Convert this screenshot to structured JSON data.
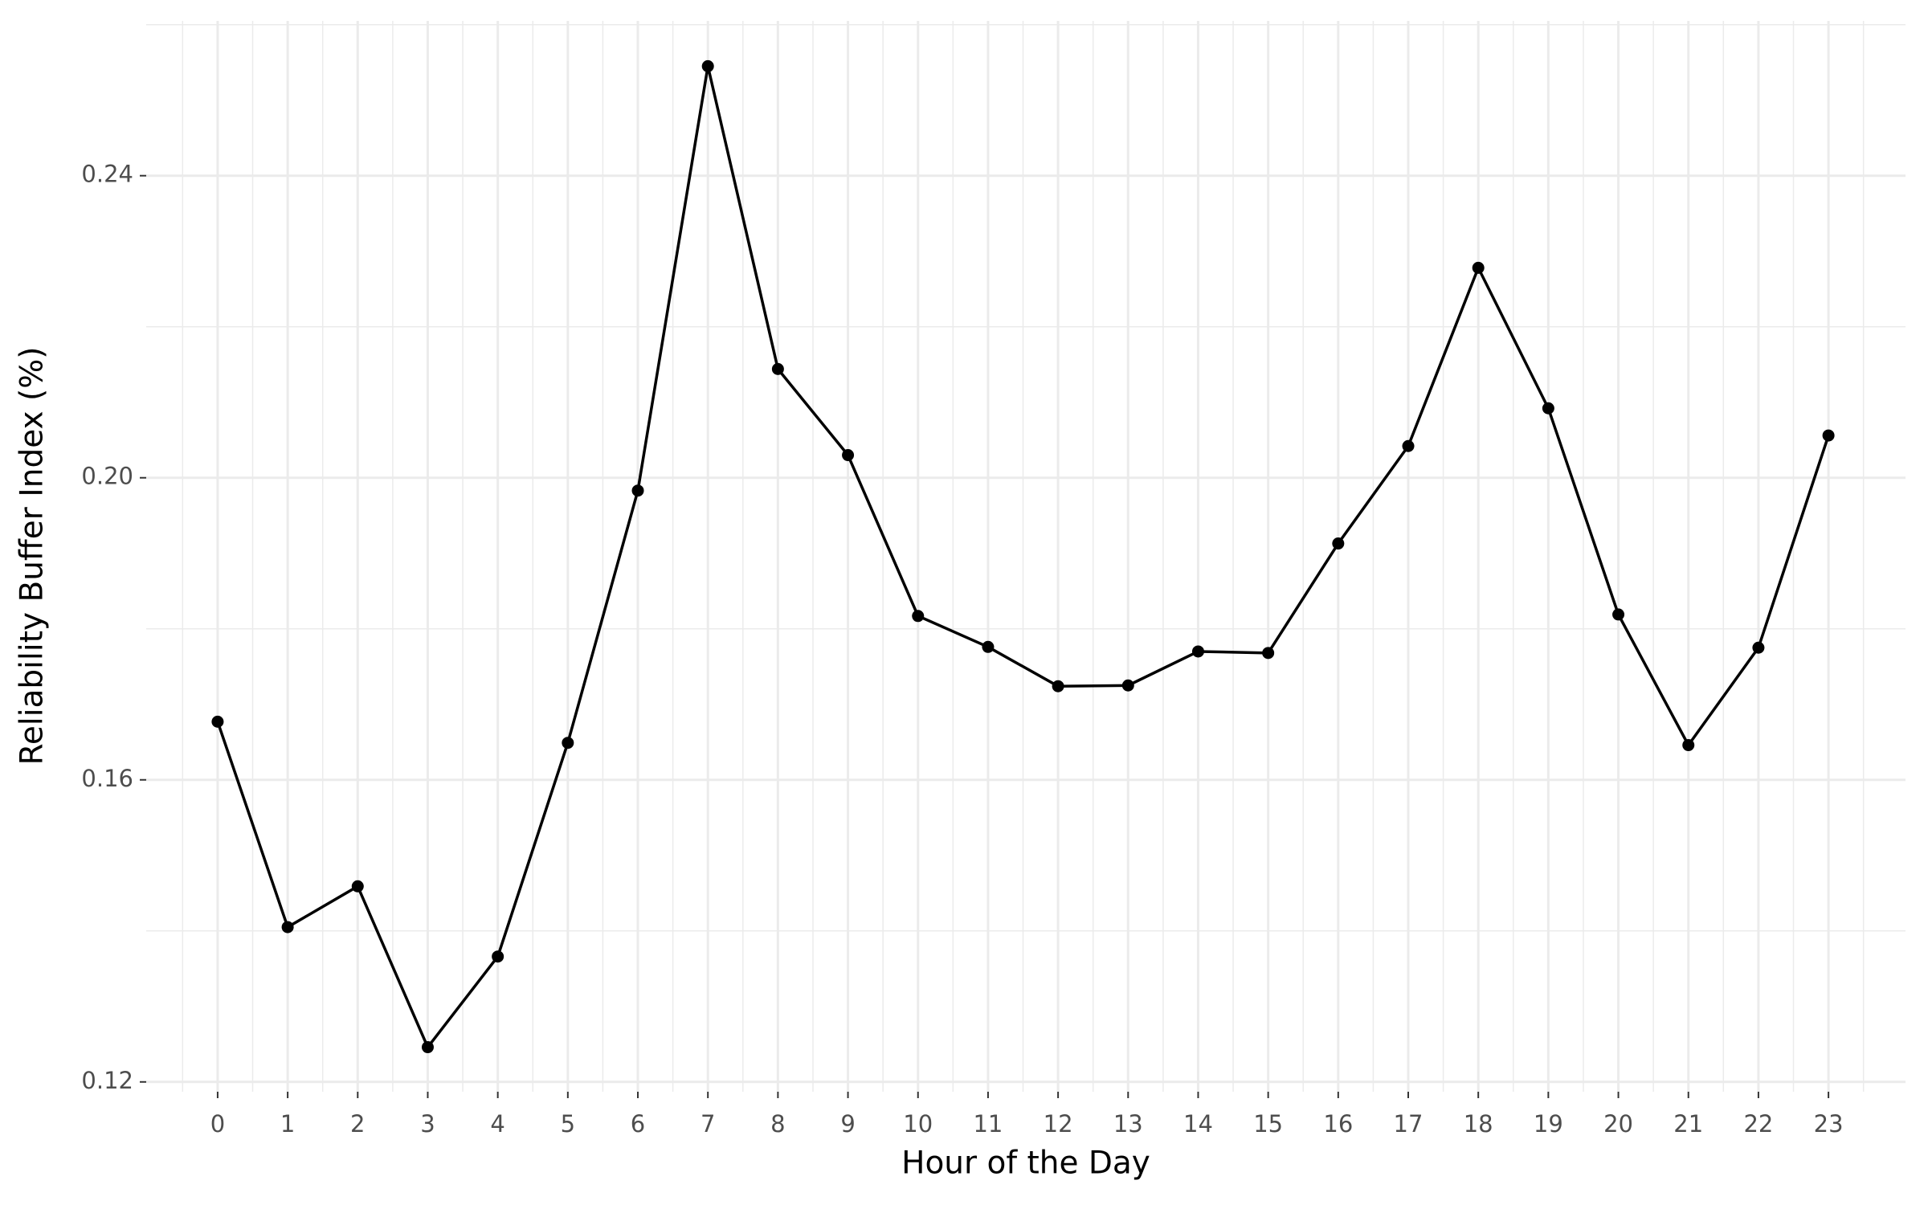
{
  "chart_data": {
    "type": "line",
    "xlabel": "Hour of the Day",
    "ylabel": "Reliability Buffer Index (%)",
    "x": [
      0,
      1,
      2,
      3,
      4,
      5,
      6,
      7,
      8,
      9,
      10,
      11,
      12,
      13,
      14,
      15,
      16,
      17,
      18,
      19,
      20,
      21,
      22,
      23
    ],
    "series": [
      {
        "color": "#000000",
        "values": [
          0.1677,
          0.1405,
          0.1459,
          0.1246,
          0.1366,
          0.1649,
          0.1983,
          0.2545,
          0.2144,
          0.203,
          0.1817,
          0.1776,
          0.1724,
          0.1725,
          0.177,
          0.1768,
          0.1913,
          0.2042,
          0.2278,
          0.2092,
          0.1819,
          0.1646,
          0.1775,
          0.2056
        ]
      }
    ],
    "xlim": [
      -1.02,
      24.1
    ],
    "xticks": [
      0,
      1,
      2,
      3,
      4,
      5,
      6,
      7,
      8,
      9,
      10,
      11,
      12,
      13,
      14,
      15,
      16,
      17,
      18,
      19,
      20,
      21,
      22,
      23
    ],
    "ylim": [
      0.1187,
      0.2605
    ],
    "yticks": [
      0.12,
      0.16,
      {
        "value": 0.2,
        "label": "0.20"
      },
      0.24
    ],
    "grid": true
  }
}
